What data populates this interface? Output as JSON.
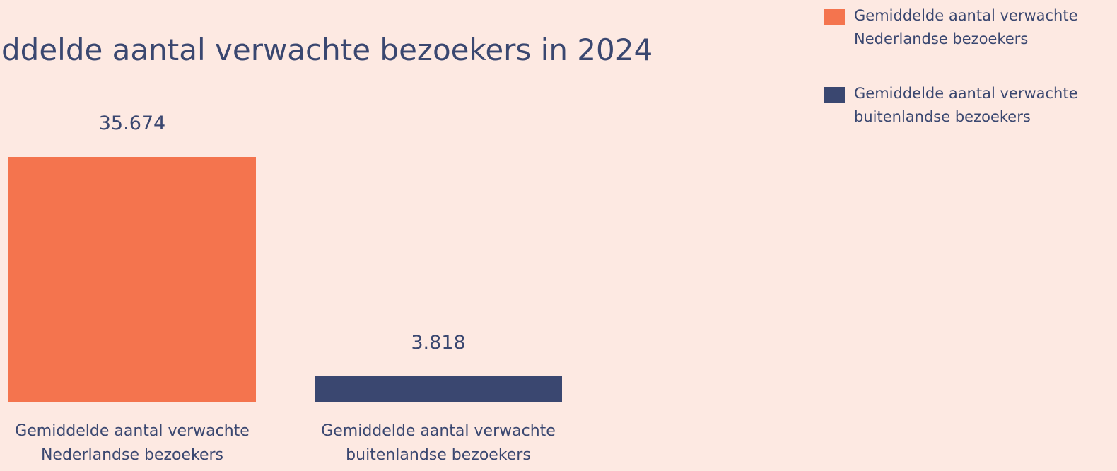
{
  "chart_data": {
    "type": "bar",
    "title": "ddelde aantal verwachte bezoekers in 2024",
    "categories": [
      "Gemiddelde aantal verwachte Nederlandse bezoekers",
      "Gemiddelde aantal verwachte buitenlandse bezoekers"
    ],
    "values": [
      35674,
      3818
    ],
    "value_labels": [
      "35.674",
      "3.818"
    ],
    "colors": [
      "#f4744e",
      "#3a4770"
    ],
    "legend": "top-right"
  }
}
